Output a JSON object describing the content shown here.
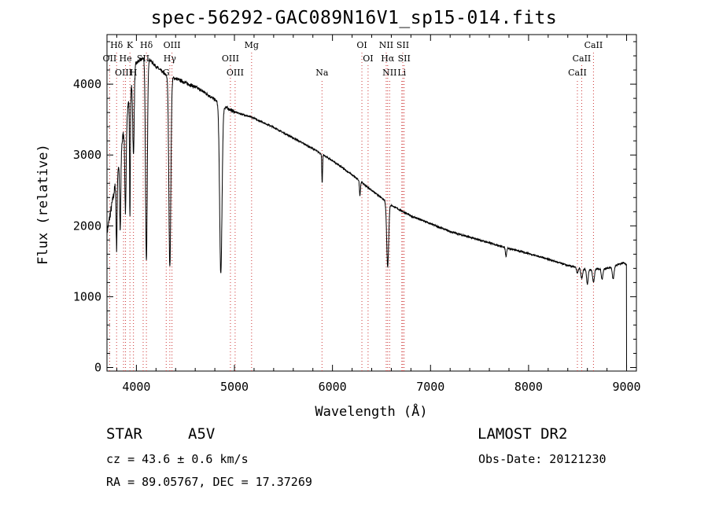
{
  "header": {
    "title": "spec-56292-GAC089N16V1_sp15-014.fits"
  },
  "info": {
    "object_class": "STAR",
    "subclass": "A5V",
    "survey": "LAMOST DR2",
    "cz": "cz = 43.6 ± 0.6 km/s",
    "obs_date": "Obs-Date: 20121230",
    "radec": "RA =  89.05767, DEC =  17.37269"
  },
  "chart_data": {
    "type": "line",
    "title": "spec-56292-GAC089N16V1_sp15-014.fits",
    "xlabel": "Wavelength (Å)",
    "ylabel": "Flux (relative)",
    "xlim": [
      3700,
      9100
    ],
    "ylim": [
      -50,
      4700
    ],
    "xticks": [
      4000,
      5000,
      6000,
      7000,
      8000,
      9000
    ],
    "yticks": [
      0,
      1000,
      2000,
      3000,
      4000
    ],
    "grid": false,
    "line_color": "#000000",
    "marker_color": "#cc3333",
    "series": [
      {
        "continuum": [
          [
            3700,
            1900
          ],
          [
            3800,
            2700
          ],
          [
            3900,
            3600
          ],
          [
            4000,
            4300
          ],
          [
            4100,
            4400
          ],
          [
            4200,
            4250
          ],
          [
            4300,
            4130
          ],
          [
            4400,
            4080
          ],
          [
            4500,
            4020
          ],
          [
            4600,
            3960
          ],
          [
            4700,
            3880
          ],
          [
            4800,
            3780
          ],
          [
            4900,
            3680
          ],
          [
            5000,
            3610
          ],
          [
            5200,
            3520
          ],
          [
            5400,
            3390
          ],
          [
            5600,
            3240
          ],
          [
            5800,
            3090
          ],
          [
            6000,
            2920
          ],
          [
            6200,
            2720
          ],
          [
            6400,
            2500
          ],
          [
            6600,
            2290
          ],
          [
            6800,
            2140
          ],
          [
            7000,
            2030
          ],
          [
            7200,
            1920
          ],
          [
            7400,
            1840
          ],
          [
            7600,
            1760
          ],
          [
            7800,
            1680
          ],
          [
            8000,
            1610
          ],
          [
            8200,
            1530
          ],
          [
            8400,
            1440
          ],
          [
            8600,
            1380
          ],
          [
            8800,
            1400
          ],
          [
            8970,
            1480
          ],
          [
            9000,
            1450
          ]
        ],
        "absorption": [
          [
            3798,
            1000,
            5
          ],
          [
            3835,
            1100,
            6
          ],
          [
            3889,
            1300,
            7
          ],
          [
            3934,
            1700,
            4
          ],
          [
            3970,
            1100,
            7
          ],
          [
            4102,
            2900,
            9
          ],
          [
            4341,
            2700,
            10
          ],
          [
            4861,
            2400,
            12
          ],
          [
            5895,
            400,
            4
          ],
          [
            6280,
            200,
            5
          ],
          [
            6563,
            900,
            10
          ],
          [
            7770,
            120,
            6
          ],
          [
            8498,
            80,
            8
          ],
          [
            8542,
            140,
            9
          ],
          [
            8600,
            200,
            8
          ],
          [
            8662,
            180,
            9
          ],
          [
            8750,
            150,
            8
          ],
          [
            8863,
            180,
            9
          ]
        ]
      }
    ],
    "lines": [
      {
        "label": "Hδ",
        "x": 3798,
        "row": 0
      },
      {
        "label": "K",
        "x": 3934,
        "row": 0
      },
      {
        "label": "Hδ",
        "x": 4102,
        "row": 0
      },
      {
        "label": "OIII",
        "x": 4363,
        "row": 0
      },
      {
        "label": "Mg",
        "x": 5175,
        "row": 0
      },
      {
        "label": "OI",
        "x": 6300,
        "row": 0
      },
      {
        "label": "NII",
        "x": 6548,
        "row": 0
      },
      {
        "label": "SII",
        "x": 6717,
        "row": 0
      },
      {
        "label": "CaII",
        "x": 8662,
        "row": 0
      },
      {
        "label": "OII",
        "x": 3727,
        "row": 1
      },
      {
        "label": "He",
        "x": 3889,
        "row": 1
      },
      {
        "label": "SII",
        "x": 4069,
        "row": 1
      },
      {
        "label": "Hγ",
        "x": 4341,
        "row": 1
      },
      {
        "label": "OIII",
        "x": 4959,
        "row": 1
      },
      {
        "label": "OI",
        "x": 6363,
        "row": 1
      },
      {
        "label": "Hα",
        "x": 6563,
        "row": 1
      },
      {
        "label": "SII",
        "x": 6731,
        "row": 1
      },
      {
        "label": "CaII",
        "x": 8542,
        "row": 1
      },
      {
        "label": "OIII",
        "x": 3869,
        "row": 2
      },
      {
        "label": "H",
        "x": 3970,
        "row": 2
      },
      {
        "label": "G",
        "x": 4304,
        "row": 2
      },
      {
        "label": "OIII",
        "x": 5007,
        "row": 2
      },
      {
        "label": "Na",
        "x": 5893,
        "row": 2
      },
      {
        "label": "NII",
        "x": 6583,
        "row": 2
      },
      {
        "label": "Li",
        "x": 6707,
        "row": 2
      },
      {
        "label": "CaII",
        "x": 8498,
        "row": 2
      }
    ]
  }
}
